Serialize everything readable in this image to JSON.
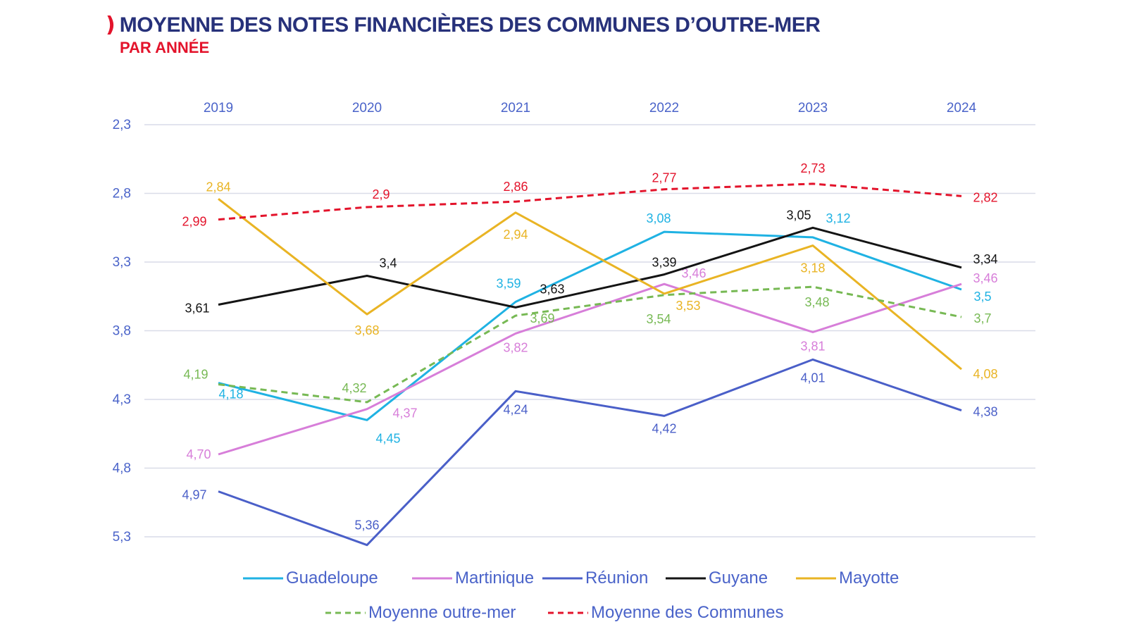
{
  "title": {
    "marker": ")",
    "main": "MOYENNE DES NOTES FINANCIÈRES DES COMMUNES D’OUTRE-MER",
    "sub": "PAR ANNÉE"
  },
  "colors": {
    "title": "#27317a",
    "accent": "#e3132b",
    "axis_text": "#4a63c9",
    "grid": "#d9dce8"
  },
  "chart_data": {
    "type": "line",
    "x": [
      "2019",
      "2020",
      "2021",
      "2022",
      "2023",
      "2024"
    ],
    "x_axis_position": "top",
    "y_axis": {
      "inverted": true,
      "ylim": [
        2.3,
        5.3
      ],
      "ticks": [
        "2,3",
        "2,8",
        "3,3",
        "3,8",
        "4,3",
        "4,8",
        "5,3"
      ],
      "tick_values": [
        2.3,
        2.8,
        3.3,
        3.8,
        4.3,
        4.8,
        5.3
      ]
    },
    "grid": true,
    "legend_position": "bottom",
    "series": [
      {
        "name": "Guadeloupe",
        "color": "#1fb2e3",
        "dash": false,
        "values": [
          4.18,
          4.45,
          3.59,
          3.08,
          3.12,
          3.5
        ],
        "labels": [
          "4,18",
          "4,45",
          "3,59",
          "3,08",
          "3,12",
          "3,5"
        ]
      },
      {
        "name": "Martinique",
        "color": "#d77ed9",
        "dash": false,
        "values": [
          4.7,
          4.37,
          3.82,
          3.46,
          3.81,
          3.46
        ],
        "labels": [
          "4,70",
          "4,37",
          "3,82",
          "3,46",
          "3,81",
          "3,46"
        ]
      },
      {
        "name": "Réunion",
        "color": "#4a5fc8",
        "dash": false,
        "values": [
          4.97,
          5.36,
          4.24,
          4.42,
          4.01,
          4.38
        ],
        "labels": [
          "4,97",
          "5,36",
          "4,24",
          "4,42",
          "4,01",
          "4,38"
        ]
      },
      {
        "name": "Guyane",
        "color": "#141414",
        "dash": false,
        "values": [
          3.61,
          3.4,
          3.63,
          3.39,
          3.05,
          3.34
        ],
        "labels": [
          "3,61",
          "3,4",
          "3,63",
          "3,39",
          "3,05",
          "3,34"
        ]
      },
      {
        "name": "Mayotte",
        "color": "#e9b424",
        "dash": false,
        "values": [
          2.84,
          3.68,
          2.94,
          3.53,
          3.18,
          4.08
        ],
        "labels": [
          "2,84",
          "3,68",
          "2,94",
          "3,53",
          "3,18",
          "4,08"
        ]
      },
      {
        "name": "Moyenne outre-mer",
        "color": "#77b954",
        "dash": true,
        "values": [
          4.19,
          4.32,
          3.69,
          3.54,
          3.48,
          3.7
        ],
        "labels": [
          "4,19",
          "4,32",
          "3,69",
          "3,54",
          "3,48",
          "3,7"
        ]
      },
      {
        "name": "Moyenne des Communes",
        "color": "#e3132b",
        "dash": true,
        "values": [
          2.99,
          2.9,
          2.86,
          2.77,
          2.73,
          2.82
        ],
        "labels": [
          "2,99",
          "2,9",
          "2,86",
          "2,77",
          "2,73",
          "2,82"
        ]
      }
    ]
  }
}
